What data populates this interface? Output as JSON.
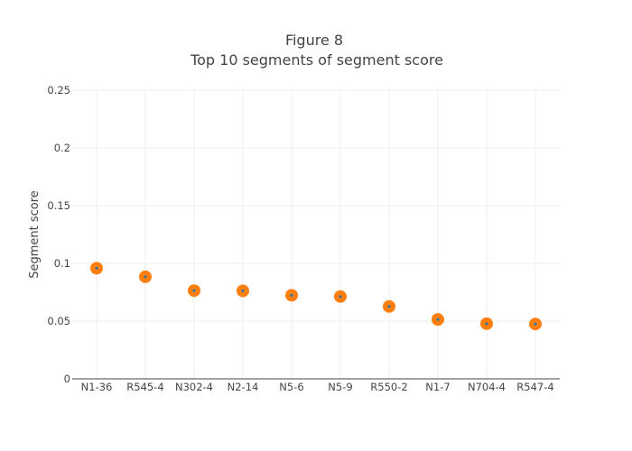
{
  "chart_data": {
    "type": "scatter",
    "title_lines": [
      "Figure 8",
      "Top 10 segments of segment score"
    ],
    "xlabel": "",
    "ylabel": "Segment score",
    "categories": [
      "N1-36",
      "R545-4",
      "N302-4",
      "N2-14",
      "N5-6",
      "N5-9",
      "R550-2",
      "N1-7",
      "N704-4",
      "R547-4"
    ],
    "values": [
      0.0958,
      0.0884,
      0.0764,
      0.0762,
      0.0724,
      0.0713,
      0.0627,
      0.0514,
      0.0478,
      0.0475
    ],
    "ylim": [
      0,
      0.25
    ],
    "yticks": [
      0,
      0.05,
      0.1,
      0.15,
      0.2,
      0.25
    ],
    "ytick_labels": [
      "0",
      "0.05",
      "0.1",
      "0.15",
      "0.2",
      "0.25"
    ],
    "grid": true,
    "marker_color": "#ff7f0e",
    "marker_center_color": "#1f77b4"
  }
}
